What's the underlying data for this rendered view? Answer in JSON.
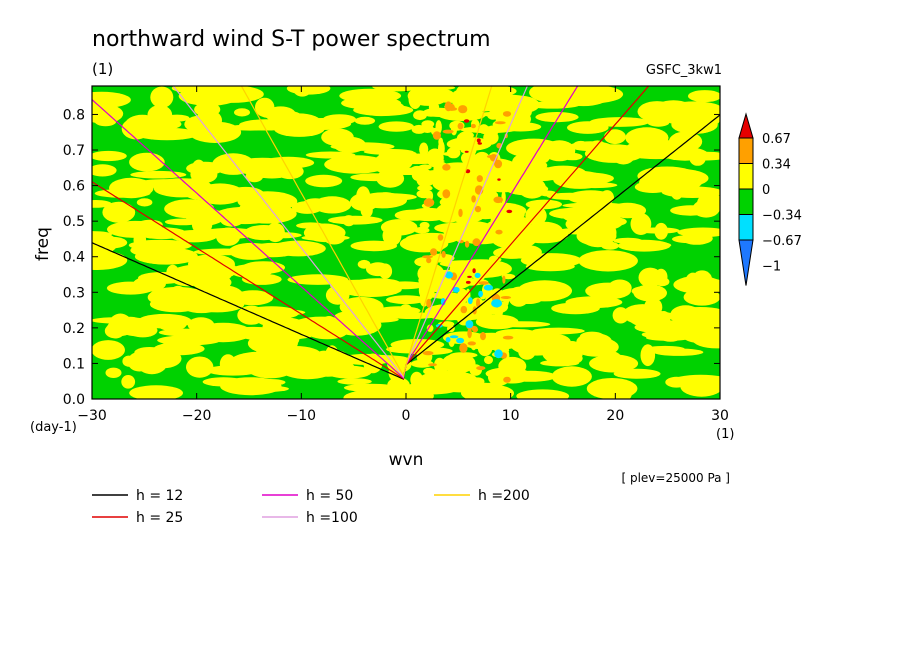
{
  "chart_data": {
    "type": "heatmap",
    "title": "northward wind S-T power spectrum",
    "subtitle_left": "(1)",
    "subtitle_right": "GSFC_3kw1",
    "xlabel": "wvn",
    "ylabel": "freq",
    "x_unit": "(1)",
    "y_unit": "(day-1)",
    "xlim": [
      -30,
      30
    ],
    "ylim": [
      0,
      0.88
    ],
    "x_ticks": [
      -30,
      -20,
      -10,
      0,
      10,
      20,
      30
    ],
    "x_tick_labels": [
      "−30",
      "−20",
      "−10",
      "0",
      "10",
      "20",
      "30"
    ],
    "y_ticks": [
      0.0,
      0.1,
      0.2,
      0.3,
      0.4,
      0.5,
      0.6,
      0.7,
      0.8
    ],
    "y_tick_labels": [
      "0.0",
      "0.1",
      "0.2",
      "0.3",
      "0.4",
      "0.5",
      "0.6",
      "0.7",
      "0.8"
    ],
    "annotation": "[ plev=25000 Pa ]",
    "colorbar": {
      "levels": [
        -1,
        -0.67,
        -0.34,
        0,
        0.34,
        0.67
      ],
      "labels": [
        "−1",
        "−0.67",
        "−0.34",
        "0",
        "0.34",
        "0.67"
      ],
      "colors": [
        "#1e78ff",
        "#00e0ff",
        "#00d200",
        "#ffff00",
        "#ffa000",
        "#e60000"
      ]
    },
    "series": [
      {
        "name": "h = 12",
        "h": 12,
        "color": "#000000"
      },
      {
        "name": "h = 25",
        "h": 25,
        "color": "#e00000"
      },
      {
        "name": "h = 50",
        "h": 50,
        "color": "#e000c8"
      },
      {
        "name": "h =100",
        "h": 100,
        "color": "#e0a0e0"
      },
      {
        "name": "h =200",
        "h": 200,
        "color": "#ffd200"
      }
    ]
  }
}
